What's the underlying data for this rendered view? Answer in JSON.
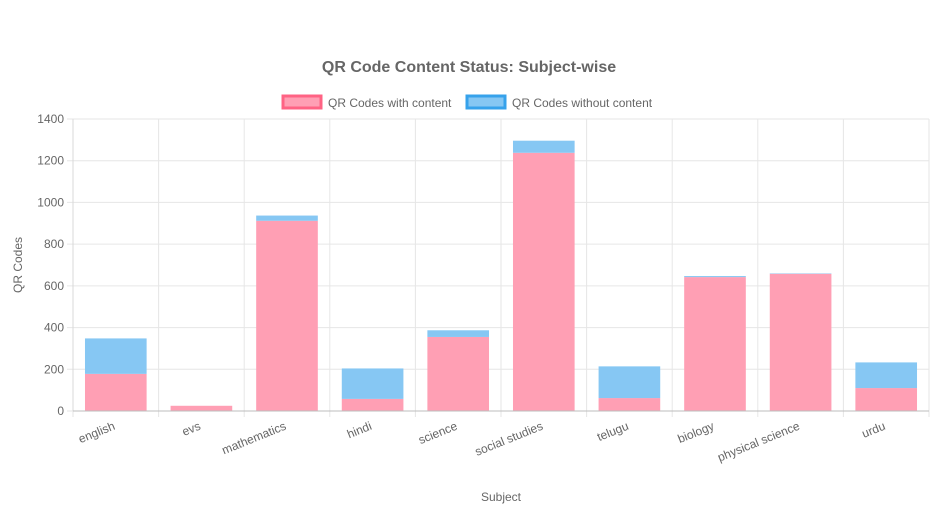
{
  "chart_data": {
    "type": "bar",
    "stacked": true,
    "title": "QR Code Content Status: Subject-wise",
    "xlabel": "Subject",
    "ylabel": "QR Codes",
    "ylim": [
      0,
      1400
    ],
    "yticks": [
      0,
      200,
      400,
      600,
      800,
      1000,
      1200,
      1400
    ],
    "grid": true,
    "legend_position": "top",
    "categories": [
      "english",
      "evs",
      "mathematics",
      "hindi",
      "science",
      "social studies",
      "telugu",
      "biology",
      "physical science",
      "urdu"
    ],
    "series": [
      {
        "name": "QR Codes with content",
        "values": [
          178,
          25,
          912,
          58,
          355,
          1238,
          62,
          642,
          658,
          110
        ],
        "fill": "#ff9fb4",
        "border": "#ff6384"
      },
      {
        "name": "QR Codes without content",
        "values": [
          170,
          0,
          25,
          146,
          32,
          58,
          152,
          5,
          2,
          123
        ],
        "fill": "#86c7f3",
        "border": "#36a2eb"
      }
    ]
  }
}
